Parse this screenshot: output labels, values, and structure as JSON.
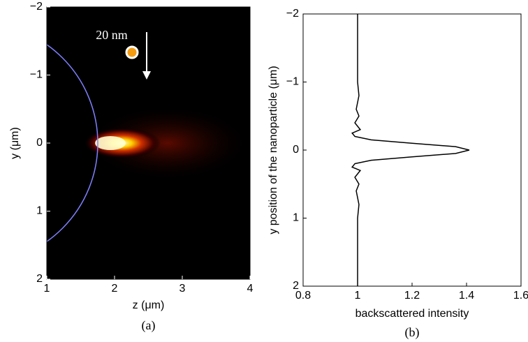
{
  "chart_data": [
    {
      "type": "heatmap",
      "xlabel": "z (μm)",
      "ylabel": "y (μm)",
      "caption": "(a)",
      "annotation": "20 nm",
      "xlim": [
        1,
        4
      ],
      "xticks": [
        1,
        2,
        3,
        4
      ],
      "ylim": [
        -2,
        2
      ],
      "yreverse": true,
      "yticks": [
        {
          "value": -2,
          "label": "−2"
        },
        {
          "value": -1,
          "label": "−1"
        },
        0,
        1,
        2
      ]
    },
    {
      "type": "line",
      "xlabel": "backscattered intensity",
      "ylabel": "y position of the nanoparticle (μm)",
      "caption": "(b)",
      "xlim": [
        0.8,
        1.6
      ],
      "xticks": [
        0.8,
        1,
        1.2,
        1.4,
        1.6
      ],
      "ylim": [
        -2,
        2
      ],
      "yreverse": true,
      "yticks": [
        {
          "value": -2,
          "label": "−2"
        },
        {
          "value": -1,
          "label": "−1"
        },
        0,
        1,
        2
      ],
      "color": "#000000",
      "y": [
        -2,
        -1.5,
        -1,
        -0.8,
        -0.6,
        -0.5,
        -0.4,
        -0.35,
        -0.3,
        -0.25,
        -0.2,
        -0.15,
        -0.1,
        -0.05,
        0,
        0.05,
        0.1,
        0.15,
        0.2,
        0.25,
        0.3,
        0.35,
        0.4,
        0.5,
        0.6,
        0.8,
        1,
        1.5,
        2
      ],
      "values": [
        1,
        1,
        1,
        1.005,
        0.995,
        1.005,
        0.99,
        1.0,
        1.01,
        0.98,
        0.99,
        1.05,
        1.2,
        1.36,
        1.41,
        1.36,
        1.2,
        1.05,
        0.99,
        0.98,
        1.01,
        1.0,
        0.99,
        1.005,
        0.995,
        1.005,
        1,
        1,
        1
      ]
    }
  ]
}
